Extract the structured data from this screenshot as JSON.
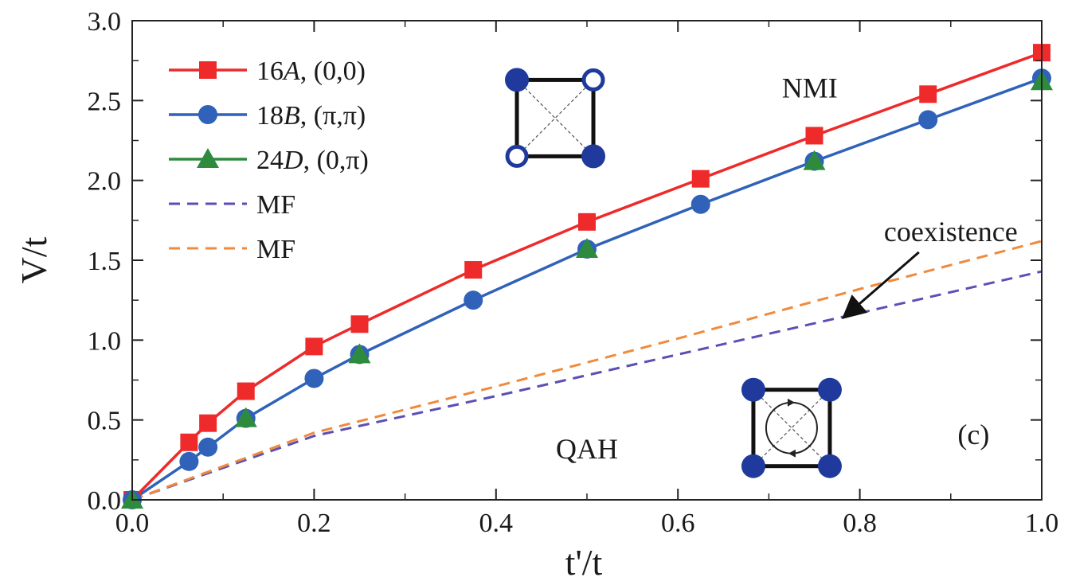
{
  "chart_data": {
    "type": "line",
    "xlabel": "t'/t",
    "ylabel": "V/t",
    "xlim": [
      0.0,
      1.0
    ],
    "ylim": [
      0.0,
      3.0
    ],
    "x_ticks": [
      "0.0",
      "0.2",
      "0.4",
      "0.6",
      "0.8",
      "1.0"
    ],
    "x_tick_values": [
      0.0,
      0.2,
      0.4,
      0.6,
      0.8,
      1.0
    ],
    "x_minor_step": 0.1,
    "y_ticks": [
      "0.0",
      "0.5",
      "1.0",
      "1.5",
      "2.0",
      "2.5",
      "3.0"
    ],
    "y_tick_values": [
      0.0,
      0.5,
      1.0,
      1.5,
      2.0,
      2.5,
      3.0
    ],
    "y_minor_step": 0.25,
    "grid": false,
    "legend_position": "top-left",
    "series": [
      {
        "name": "16A, (0,0)",
        "label_main": "16",
        "label_italic": "A",
        "label_rest": ", (0,0)",
        "color": "#ee2a2a",
        "marker": "square",
        "line": "solid",
        "x": [
          0.0,
          0.0625,
          0.0833,
          0.125,
          0.2,
          0.25,
          0.375,
          0.5,
          0.625,
          0.75,
          0.875,
          1.0
        ],
        "y": [
          0.0,
          0.36,
          0.48,
          0.68,
          0.96,
          1.1,
          1.44,
          1.74,
          2.01,
          2.28,
          2.54,
          2.8
        ]
      },
      {
        "name": "18B, (π,π)",
        "label_main": "18",
        "label_italic": "B",
        "label_rest": ", (π,π)",
        "color": "#2f62b8",
        "marker": "circle",
        "line": "solid",
        "x": [
          0.0,
          0.0625,
          0.0833,
          0.125,
          0.2,
          0.25,
          0.375,
          0.5,
          0.625,
          0.75,
          0.875,
          1.0
        ],
        "y": [
          0.0,
          0.24,
          0.33,
          0.51,
          0.76,
          0.91,
          1.25,
          1.57,
          1.85,
          2.12,
          2.38,
          2.64
        ]
      },
      {
        "name": "24D, (0,π)",
        "label_main": "24",
        "label_italic": "D",
        "label_rest": ", (0,π)",
        "color": "#2e8b3e",
        "marker": "triangle",
        "line": "solid",
        "draw_line": false,
        "x": [
          0.0,
          0.125,
          0.25,
          0.5,
          0.75,
          1.0
        ],
        "y": [
          0.0,
          0.51,
          0.91,
          1.57,
          2.12,
          2.62
        ]
      },
      {
        "name": "MF",
        "label_main": "MF",
        "label_italic": "",
        "label_rest": "",
        "color": "#5a4fb5",
        "marker": "none",
        "line": "dashed",
        "x": [
          0.0,
          0.2,
          0.4,
          0.6,
          0.8,
          1.0
        ],
        "y": [
          0.0,
          0.4,
          0.65,
          0.91,
          1.17,
          1.43
        ]
      },
      {
        "name": "MF",
        "label_main": "MF",
        "label_italic": "",
        "label_rest": "",
        "color": "#f08a3c",
        "marker": "none",
        "line": "dashed",
        "x": [
          0.0,
          0.2,
          0.4,
          0.6,
          0.8,
          1.0
        ],
        "y": [
          0.0,
          0.42,
          0.71,
          1.01,
          1.32,
          1.62
        ]
      }
    ],
    "annotations": [
      {
        "text": "NMI",
        "x": 0.745,
        "y": 2.52
      },
      {
        "text": "QAH",
        "x": 0.5,
        "y": 0.26
      },
      {
        "text": "(c)",
        "x": 0.925,
        "y": 0.35
      },
      {
        "text": "coexistence",
        "x": 0.9,
        "y": 1.62,
        "arrow_to_x": 0.79,
        "arrow_to_y": 1.18
      }
    ],
    "insets": [
      {
        "type": "lattice-square",
        "center_x": 0.465,
        "center_y": 2.39,
        "filled": [
          true,
          false,
          false,
          true
        ]
      },
      {
        "type": "lattice-square-loop",
        "center_x": 0.725,
        "center_y": 0.45,
        "filled": [
          true,
          true,
          true,
          true
        ]
      }
    ],
    "inset_colors": {
      "site_fill": "#1f3a9c",
      "site_hollow": "#ffffff",
      "edge": "#111111"
    }
  }
}
